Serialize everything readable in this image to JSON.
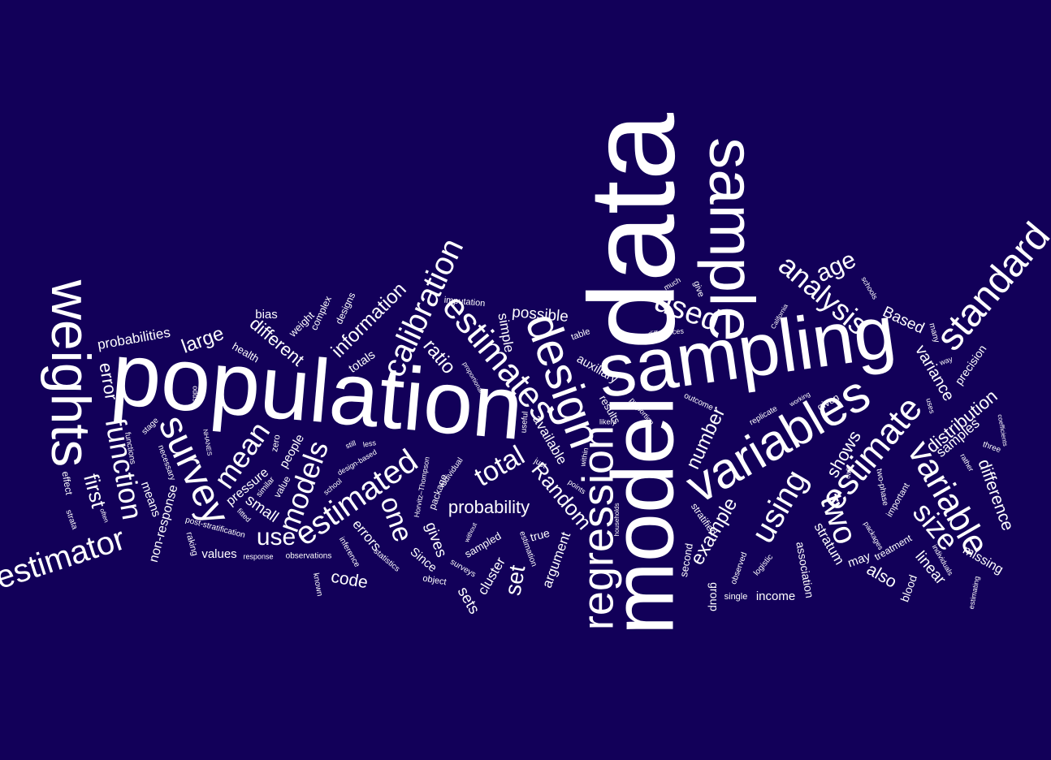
{
  "words": [
    "population",
    "sampling",
    "data",
    "model",
    "sample",
    "variables",
    "weights",
    "design",
    "regression",
    "estimates",
    "calibration",
    "survey",
    "estimator",
    "function",
    "estimated",
    "models",
    "mean",
    "standard",
    "estimate",
    "variable",
    "using",
    "two",
    "size",
    "analysis",
    "age",
    "used",
    "total",
    "one",
    "use",
    "Random",
    "probability",
    "example",
    "number",
    "set",
    "first",
    "error",
    "large",
    "different",
    "information",
    "ratio",
    "distribution",
    "difference",
    "shows",
    "variance",
    "Based",
    "possible",
    "simple",
    "also",
    "linear",
    "missing",
    "samples",
    "code",
    "sets",
    "gives",
    "argument",
    "cluster",
    "probabilities",
    "bias",
    "weight",
    "complex",
    "designs",
    "health",
    "totals",
    "errors",
    "pressure",
    "people",
    "small",
    "values",
    "means",
    "non-response",
    "auxiliary",
    "available",
    "results",
    "imputation",
    "stratum",
    "association",
    "income",
    "may",
    "blood",
    "precision",
    "given",
    "stratified",
    "second",
    "group",
    "single",
    "logistic",
    "observed",
    "treatment",
    "important",
    "two-phase",
    "packages",
    "individuals",
    "estimating",
    "rather",
    "three",
    "coefficients",
    "call",
    "uses",
    "way",
    "many",
    "schools",
    "California",
    "give",
    "much",
    "differences",
    "table",
    "proportional",
    "outcome",
    "working",
    "replicate",
    "proportion",
    "likely",
    "within",
    "useful",
    "just",
    "points",
    "households",
    "true",
    "estimation",
    "object",
    "surveys",
    "sampled",
    "without",
    "Since",
    "individual",
    "package",
    "Horvitz–Thompson",
    "statistics",
    "inference",
    "observations",
    "known",
    "response",
    "design-based",
    "still",
    "less",
    "school",
    "value",
    "similar",
    "zero",
    "fitted",
    "post-stratification",
    "raking",
    "NHANES",
    "odds",
    "necessary",
    "functions",
    "stage",
    "effect",
    "strata",
    "often"
  ]
}
